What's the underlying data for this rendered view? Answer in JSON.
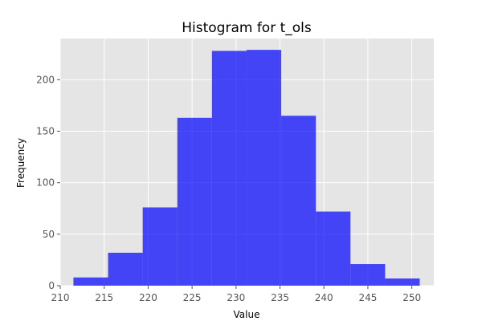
{
  "chart_data": {
    "type": "bar",
    "title": "Histogram for t_ols",
    "xlabel": "Value",
    "ylabel": "Frequency",
    "xlim": [
      210,
      252.5
    ],
    "ylim": [
      0,
      240
    ],
    "grid": true,
    "bin_edges": [
      211.5,
      215.44,
      219.38,
      223.32,
      227.26,
      231.2,
      235.14,
      239.08,
      243.02,
      246.96,
      250.9
    ],
    "values": [
      8,
      32,
      76,
      163,
      228,
      229,
      165,
      72,
      21,
      7
    ],
    "xticks": [
      210,
      215,
      220,
      225,
      230,
      235,
      240,
      245,
      250
    ],
    "yticks": [
      0,
      50,
      100,
      150,
      200
    ],
    "bar_color": "#0000ff",
    "background_color": "#e5e5e5",
    "grid_color": "#ffffff"
  }
}
